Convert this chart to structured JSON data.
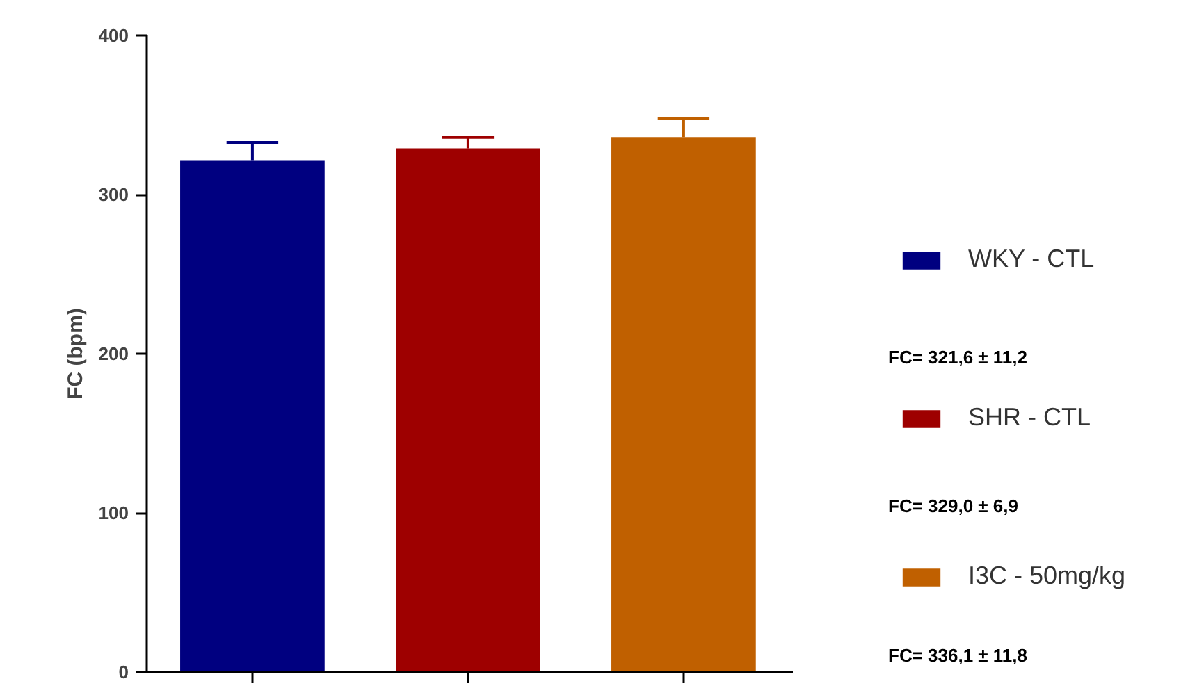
{
  "chart_data": {
    "type": "bar",
    "ylabel": "FC (bpm)",
    "stacked": true,
    "categories": [
      null,
      null,
      null
    ],
    "series": [
      {
        "name": "WKY - CTL",
        "color": "#000080",
        "values": [
          321.6,
          null,
          null
        ],
        "errors": [
          [
            321.6,
            332.8
          ],
          null,
          null
        ]
      },
      {
        "name": "SHR - CTL",
        "color": "#9e0000",
        "values": [
          null,
          329.0,
          null
        ],
        "errors": [
          null,
          [
            329.0,
            335.9
          ],
          null
        ]
      },
      {
        "name": "I3C - 50mg/kg",
        "color": "#c06000",
        "values": [
          null,
          null,
          336.1
        ],
        "errors": [
          null,
          null,
          [
            336.1,
            347.9
          ]
        ]
      }
    ],
    "ylim": [
      0,
      400
    ],
    "yticks": [
      0,
      100,
      200,
      300,
      400
    ],
    "grid": false,
    "legend": "right",
    "annotations": [
      "FC= 321,6 ± 11,2",
      "FC= 329,0 ±  6,9",
      "FC= 336,1 ±  11,8"
    ]
  }
}
